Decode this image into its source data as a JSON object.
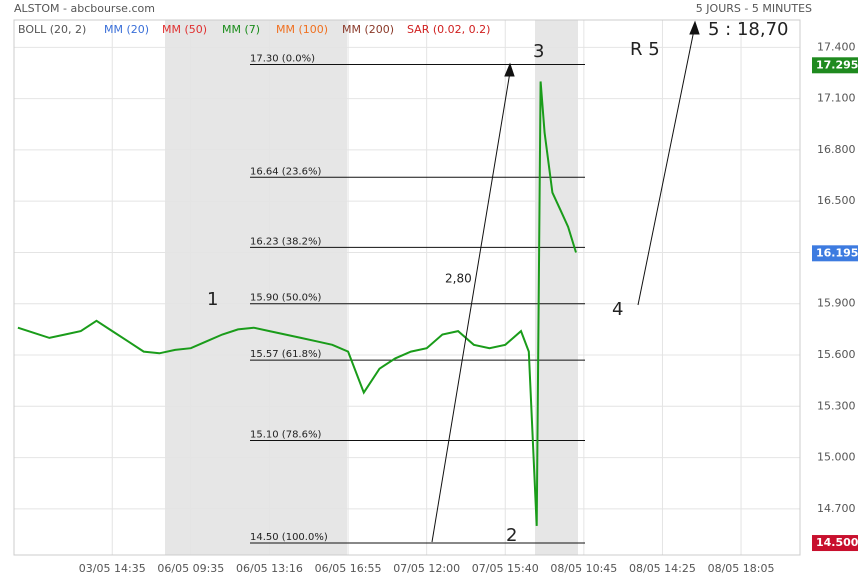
{
  "chart_data": {
    "type": "line",
    "title": "ALSTOM - abcbourse.com",
    "subtitle": "5 JOURS - 5 MINUTES",
    "indicators": [
      {
        "name": "BOLL (20, 2)",
        "color": "#555555"
      },
      {
        "name": "MM (20)",
        "color": "#3a6fd8"
      },
      {
        "name": "MM (50)",
        "color": "#e03030"
      },
      {
        "name": "MM (7)",
        "color": "#1a8c1a"
      },
      {
        "name": "MM (100)",
        "color": "#f07020"
      },
      {
        "name": "MM (200)",
        "color": "#8b3a2a"
      },
      {
        "name": "SAR (0.02, 0.2)",
        "color": "#d02020"
      }
    ],
    "x": [
      -12,
      -10,
      -8,
      -6,
      -4,
      -2,
      0,
      2,
      4,
      6,
      8,
      10,
      12,
      14,
      16,
      18,
      20,
      22,
      24,
      26,
      28,
      30,
      32,
      34,
      36,
      38,
      40,
      42,
      44,
      46,
      48,
      50,
      52,
      53,
      54,
      54.5,
      55,
      56,
      57,
      58,
      59
    ],
    "values": [
      15.76,
      15.73,
      15.7,
      15.72,
      15.74,
      15.8,
      15.74,
      15.68,
      15.62,
      15.61,
      15.63,
      15.64,
      15.68,
      15.72,
      15.75,
      15.76,
      15.74,
      15.72,
      15.7,
      15.68,
      15.66,
      15.62,
      15.38,
      15.52,
      15.58,
      15.62,
      15.64,
      15.72,
      15.74,
      15.66,
      15.64,
      15.66,
      15.74,
      15.62,
      14.6,
      17.2,
      16.9,
      16.55,
      16.45,
      16.35,
      16.2
    ],
    "color": "#1a9c1a",
    "xlim": [
      -12.5,
      87.5
    ],
    "xticks": [
      {
        "value": 0,
        "label": "03/05 14:35"
      },
      {
        "value": 10,
        "label": "06/05 09:35"
      },
      {
        "value": 20,
        "label": "06/05 13:16"
      },
      {
        "value": 30,
        "label": "06/05 16:55"
      },
      {
        "value": 40,
        "label": "07/05 12:00"
      },
      {
        "value": 50,
        "label": "07/05 15:40"
      },
      {
        "value": 60,
        "label": "08/05 10:45"
      },
      {
        "value": 70,
        "label": "08/05 14:25"
      },
      {
        "value": 80,
        "label": "08/05 18:05"
      }
    ],
    "ylim": [
      14.43,
      17.56
    ],
    "yticks": [
      {
        "value": 14.7,
        "label": "14.700"
      },
      {
        "value": 15.0,
        "label": "15.000"
      },
      {
        "value": 15.3,
        "label": "15.300"
      },
      {
        "value": 15.6,
        "label": "15.600"
      },
      {
        "value": 15.9,
        "label": "15.900"
      },
      {
        "value": 16.2,
        "label": "16.200"
      },
      {
        "value": 16.5,
        "label": "16.500"
      },
      {
        "value": 16.8,
        "label": "16.800"
      },
      {
        "value": 17.1,
        "label": "17.100"
      },
      {
        "value": 17.4,
        "label": "17.400"
      }
    ],
    "grid": true,
    "fib_levels": [
      {
        "value": 17.3,
        "label": "17.30  (0.0%)"
      },
      {
        "value": 16.64,
        "label": "16.64  (23.6%)"
      },
      {
        "value": 16.23,
        "label": "16.23  (38.2%)"
      },
      {
        "value": 15.9,
        "label": "15.90  (50.0%)"
      },
      {
        "value": 15.57,
        "label": "15.57  (61.8%)"
      },
      {
        "value": 15.1,
        "label": "15.10  (78.6%)"
      },
      {
        "value": 14.5,
        "label": "14.50  (100.0%)"
      }
    ],
    "price_tags": [
      {
        "value": 17.295,
        "label": "17.295",
        "color": "#1f8a1f"
      },
      {
        "value": 16.195,
        "label": "16.195",
        "color": "#3d7be0"
      },
      {
        "value": 14.5,
        "label": "14.500",
        "color": "#c8102e"
      }
    ],
    "annotations": [
      "1",
      "2",
      "3",
      "4",
      "R 5",
      "5 : 18,70",
      "2,80"
    ]
  }
}
